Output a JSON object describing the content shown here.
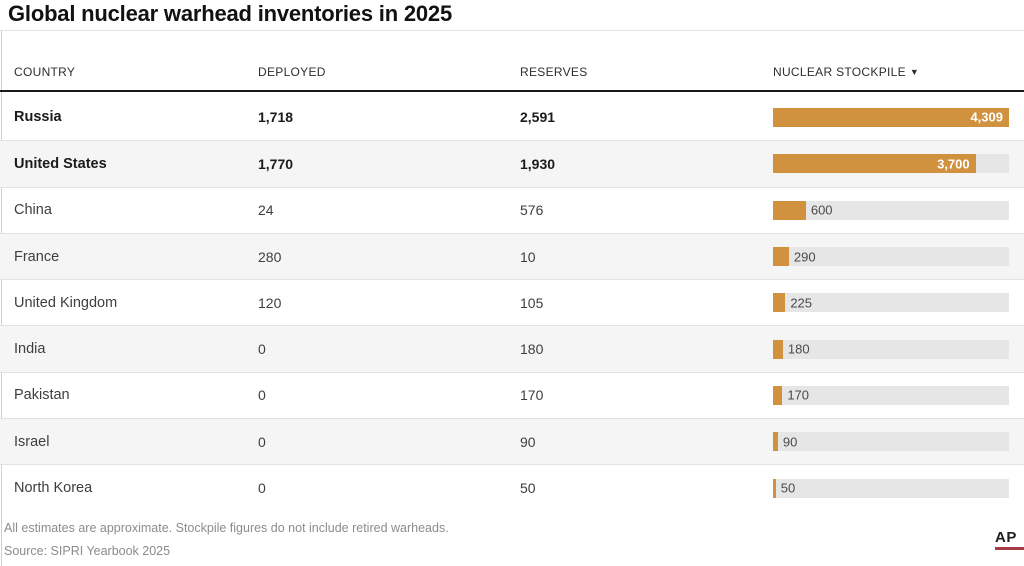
{
  "chart_data": {
    "type": "table",
    "title": "Global nuclear warhead inventories in 2025",
    "columns": [
      "COUNTRY",
      "DEPLOYED",
      "RESERVES",
      "NUCLEAR STOCKPILE"
    ],
    "sort_icon": "▼",
    "sorted_column": "NUCLEAR STOCKPILE",
    "sort_direction": "descending",
    "bar_axis_max": 4309,
    "rows": [
      {
        "country": "Russia",
        "deployed": "1,718",
        "reserves": "2,591",
        "stockpile_label": "4,309",
        "stockpile": 4309,
        "emphasis": true
      },
      {
        "country": "United States",
        "deployed": "1,770",
        "reserves": "1,930",
        "stockpile_label": "3,700",
        "stockpile": 3700,
        "emphasis": true
      },
      {
        "country": "China",
        "deployed": "24",
        "reserves": "576",
        "stockpile_label": "600",
        "stockpile": 600,
        "emphasis": false
      },
      {
        "country": "France",
        "deployed": "280",
        "reserves": "10",
        "stockpile_label": "290",
        "stockpile": 290,
        "emphasis": false
      },
      {
        "country": "United Kingdom",
        "deployed": "120",
        "reserves": "105",
        "stockpile_label": "225",
        "stockpile": 225,
        "emphasis": false
      },
      {
        "country": "India",
        "deployed": "0",
        "reserves": "180",
        "stockpile_label": "180",
        "stockpile": 180,
        "emphasis": false
      },
      {
        "country": "Pakistan",
        "deployed": "0",
        "reserves": "170",
        "stockpile_label": "170",
        "stockpile": 170,
        "emphasis": false
      },
      {
        "country": "Israel",
        "deployed": "0",
        "reserves": "90",
        "stockpile_label": "90",
        "stockpile": 90,
        "emphasis": false
      },
      {
        "country": "North Korea",
        "deployed": "0",
        "reserves": "50",
        "stockpile_label": "50",
        "stockpile": 50,
        "emphasis": false
      }
    ]
  },
  "footnote": "All estimates are approximate. Stockpile figures do not include retired warheads.",
  "source": "Source: SIPRI Yearbook 2025",
  "logo": {
    "text": "AP"
  },
  "colors": {
    "bar": "#d0923f",
    "bar_track": "#e6e6e6",
    "logo_underline": "#a63a45",
    "header_rule": "#1a1a1a"
  }
}
